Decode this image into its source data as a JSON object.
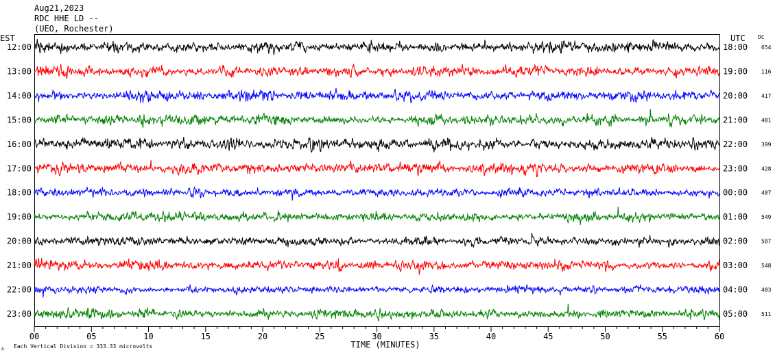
{
  "header": {
    "date": "Aug21,2023",
    "channel": "RDC HHE LD --",
    "station": "(UEO, Rochester)"
  },
  "left_zone_label": "EST",
  "right_zone_label": "UTC",
  "dc_label": "DC",
  "footer": {
    "scale_note": "Each Vertical Division =  333.33 microvolts",
    "mark": "A"
  },
  "chart_data": {
    "type": "line",
    "title": "",
    "xlabel": "TIME (MINUTES)",
    "ylabel": "",
    "xlim": [
      0,
      60
    ],
    "x_ticks": [
      "00",
      "05",
      "10",
      "15",
      "20",
      "25",
      "30",
      "35",
      "40",
      "45",
      "50",
      "55",
      "60"
    ],
    "rows": [
      {
        "est": "12:00",
        "utc": "18:00",
        "dc": "654",
        "color": "#000000"
      },
      {
        "est": "13:00",
        "utc": "19:00",
        "dc": "116",
        "color": "#ff0000"
      },
      {
        "est": "14:00",
        "utc": "20:00",
        "dc": "417",
        "color": "#0000ff"
      },
      {
        "est": "15:00",
        "utc": "21:00",
        "dc": "481",
        "color": "#008000"
      },
      {
        "est": "16:00",
        "utc": "22:00",
        "dc": "399",
        "color": "#000000"
      },
      {
        "est": "17:00",
        "utc": "23:00",
        "dc": "428",
        "color": "#ff0000"
      },
      {
        "est": "18:00",
        "utc": "00:00",
        "dc": "487",
        "color": "#0000ff"
      },
      {
        "est": "19:00",
        "utc": "01:00",
        "dc": "549",
        "color": "#008000"
      },
      {
        "est": "20:00",
        "utc": "02:00",
        "dc": "587",
        "color": "#000000"
      },
      {
        "est": "21:00",
        "utc": "03:00",
        "dc": "548",
        "color": "#ff0000"
      },
      {
        "est": "22:00",
        "utc": "04:00",
        "dc": "483",
        "color": "#0000ff"
      },
      {
        "est": "23:00",
        "utc": "05:00",
        "dc": "511",
        "color": "#008000"
      }
    ],
    "amplitude_level": [
      0.9,
      0.75,
      0.8,
      0.75,
      0.85,
      0.8,
      0.6,
      0.7,
      0.65,
      0.7,
      0.6,
      0.75
    ],
    "grid": false,
    "legend": "none"
  }
}
